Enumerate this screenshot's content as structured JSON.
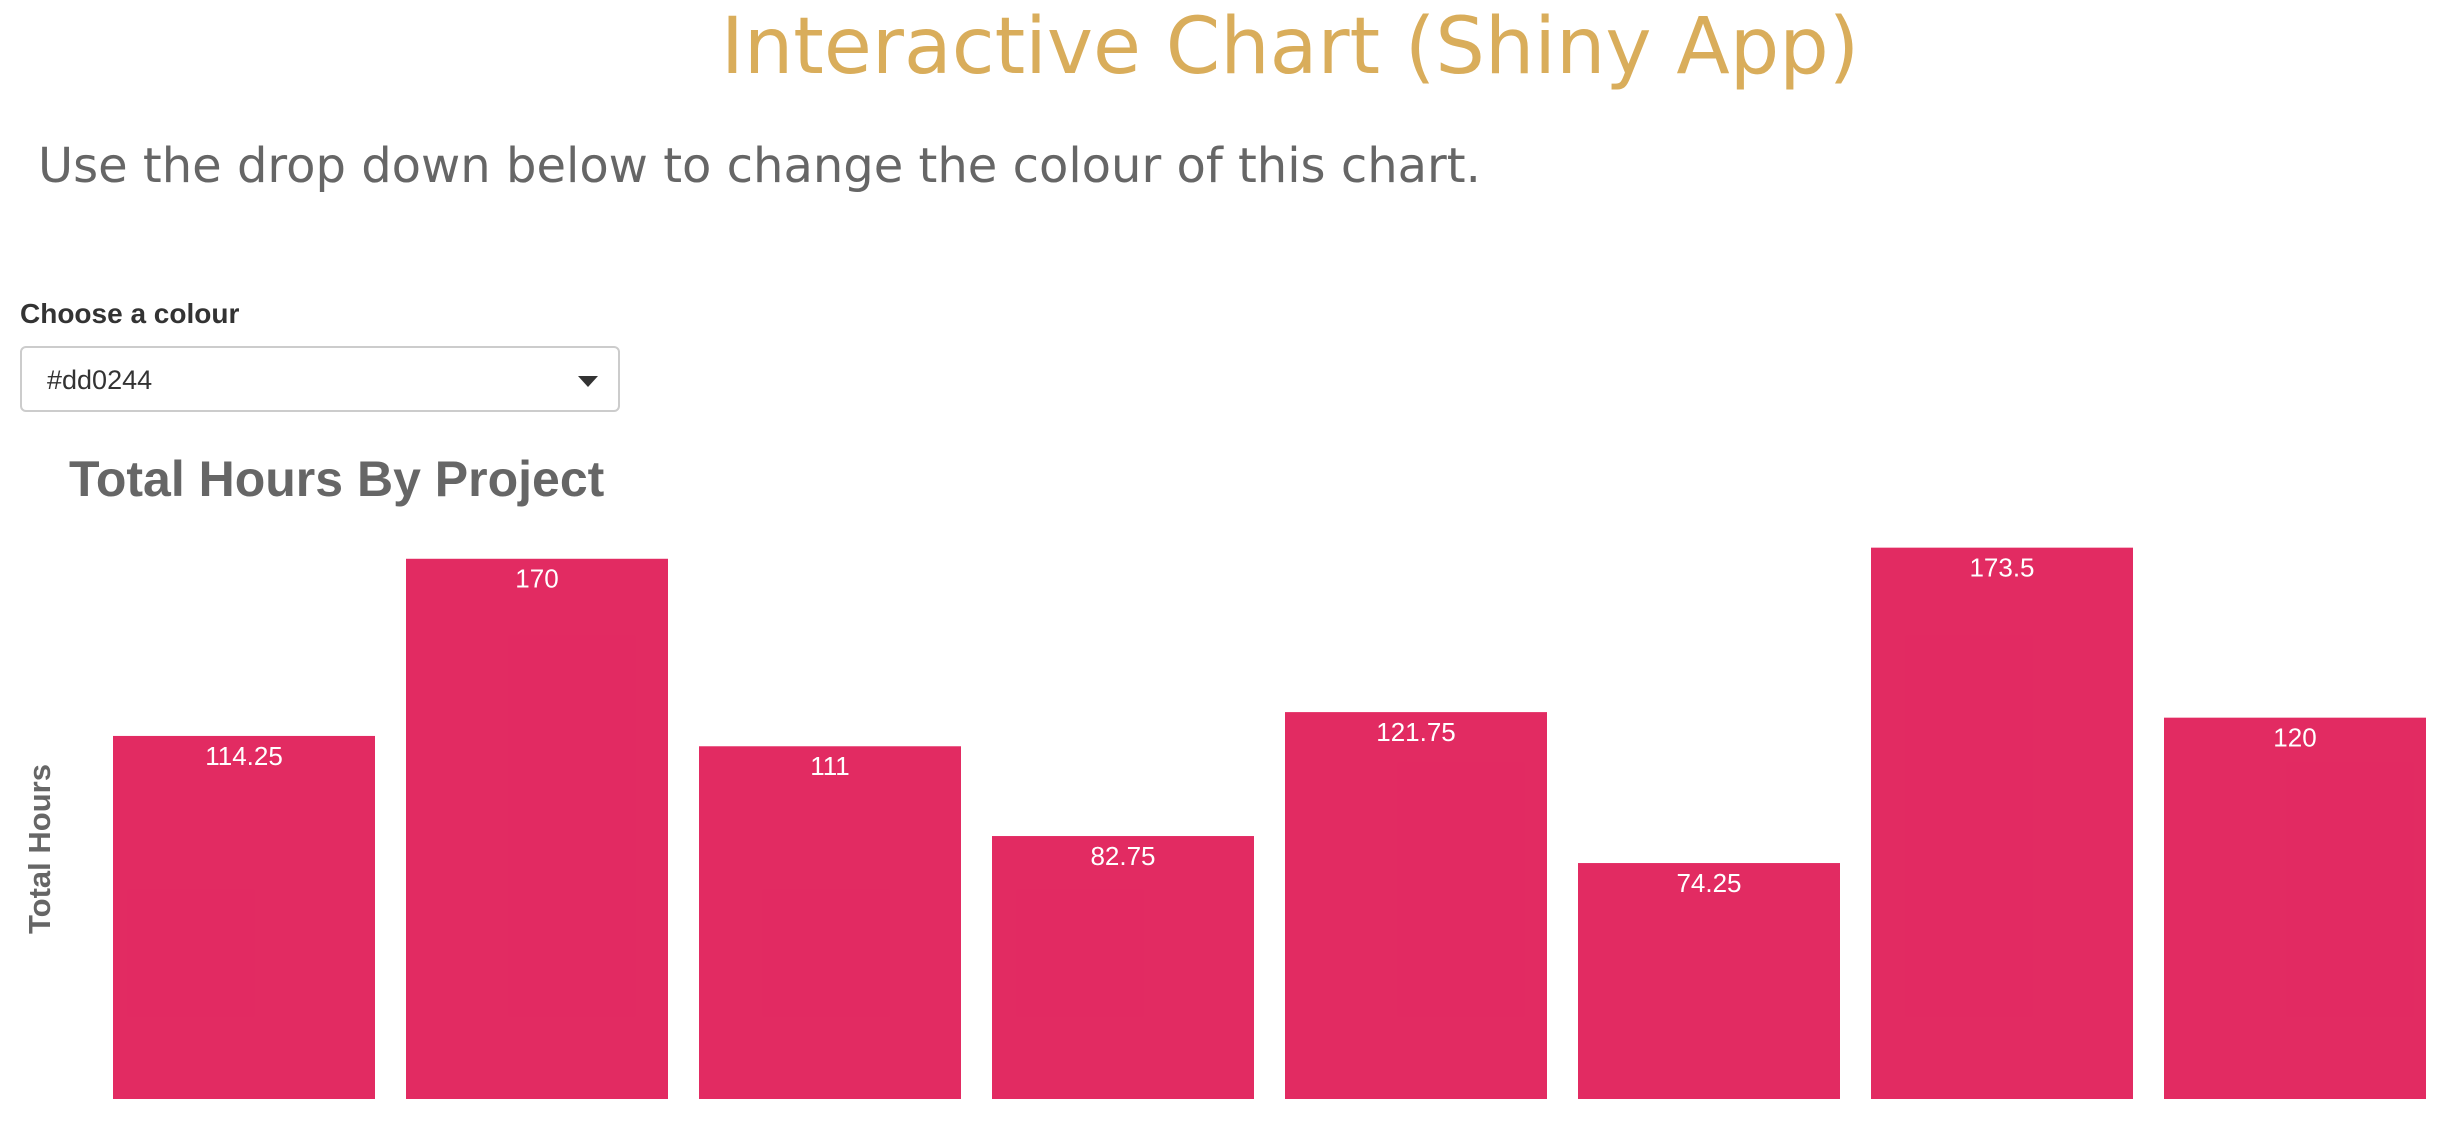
{
  "page": {
    "title": "Interactive Chart (Shiny App)",
    "subtitle": "Use the drop down below to change the colour of this chart.",
    "control_label": "Choose a colour"
  },
  "chart_data": {
    "type": "bar",
    "title": "Total Hours By Project",
    "y_label": "Total Hours",
    "categories": [
      null,
      null,
      null,
      null,
      null,
      null,
      null,
      null
    ],
    "values": [
      114.25,
      170,
      111,
      82.75,
      121.75,
      74.25,
      173.5,
      120
    ],
    "color": "#dd0244",
    "ylim": [
      0,
      180
    ]
  }
}
